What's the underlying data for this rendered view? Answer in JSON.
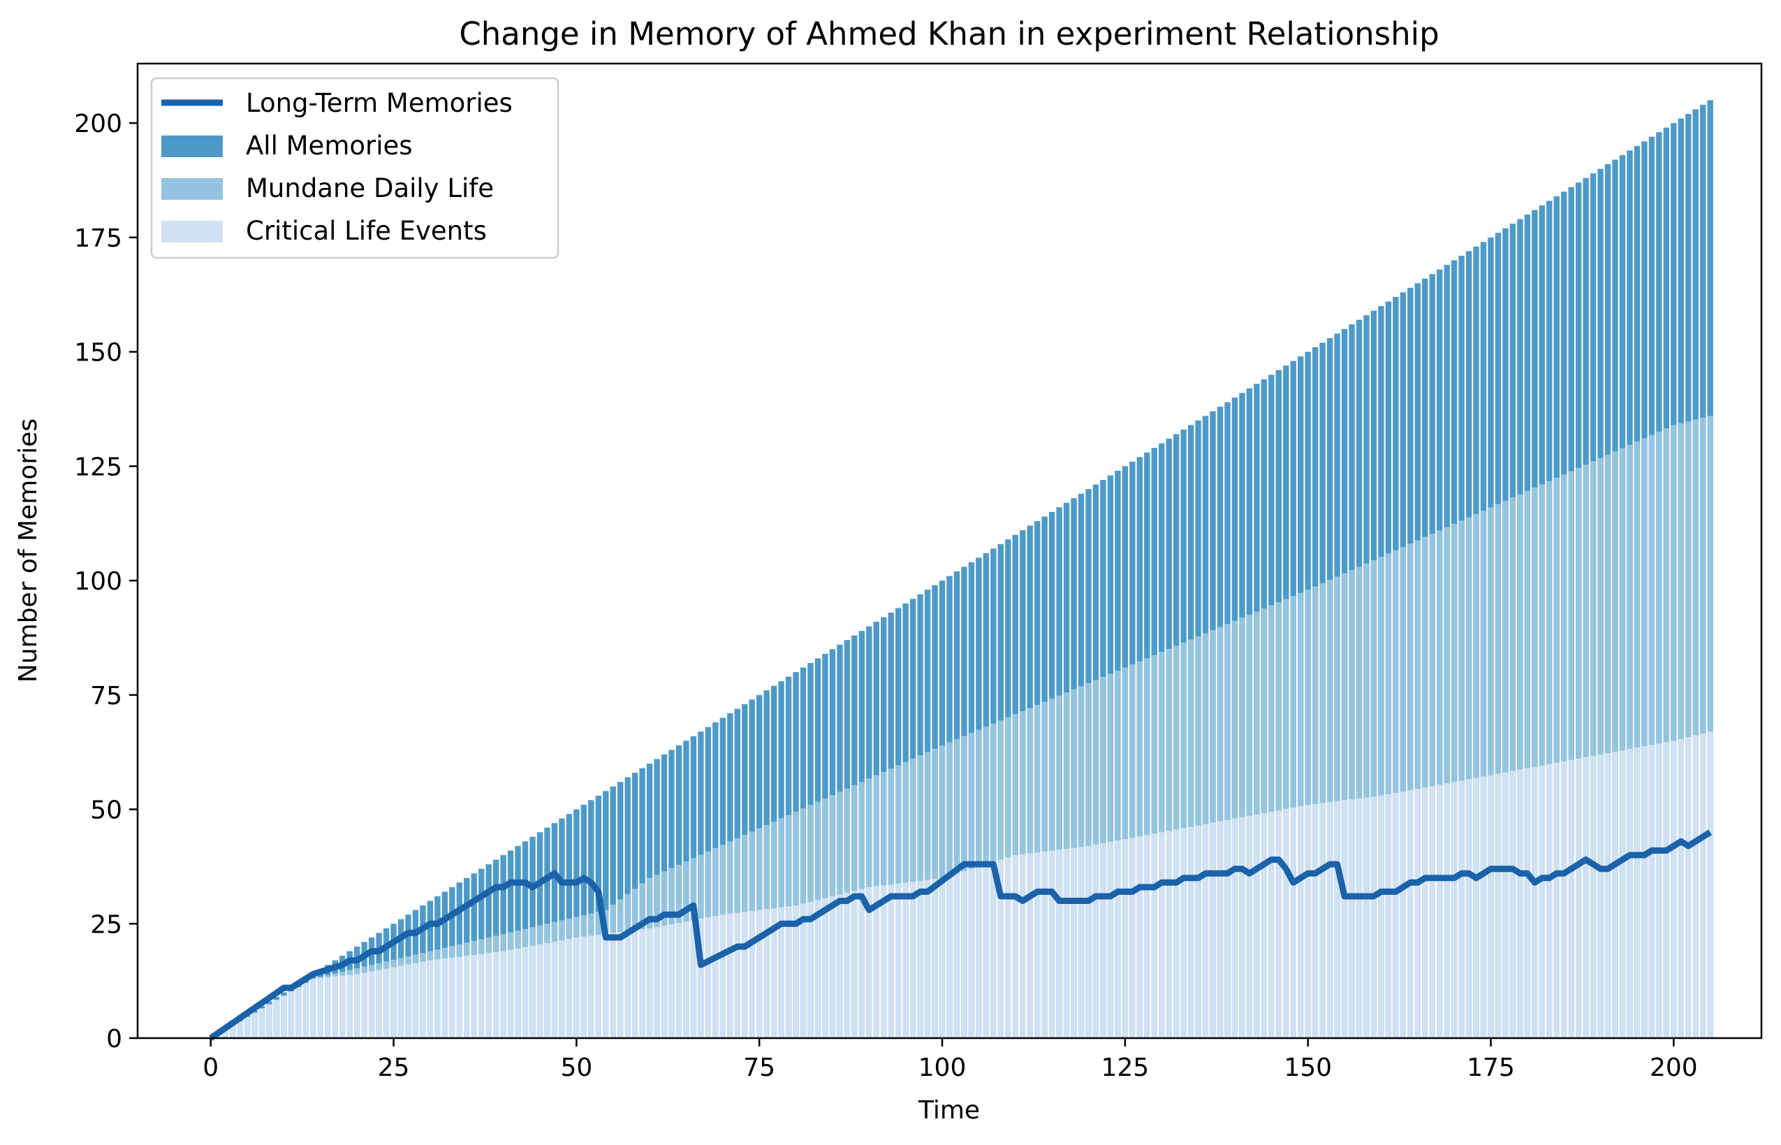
{
  "chart_data": {
    "type": "bar",
    "title": "Change in Memory of Ahmed Khan in experiment Relationship",
    "xlabel": "Time",
    "ylabel": "Number of Memories",
    "xlim": [
      -10,
      212
    ],
    "ylim": [
      0,
      213
    ],
    "xticks": [
      0,
      25,
      50,
      75,
      100,
      125,
      150,
      175,
      200
    ],
    "yticks": [
      0,
      25,
      50,
      75,
      100,
      125,
      150,
      175,
      200
    ],
    "grid": false,
    "legend_position": "top-left",
    "colors": {
      "long_term": "#1a62a9",
      "all": "#4d9ac9",
      "mundane": "#94c4df",
      "critical": "#cfe1f2"
    },
    "series": [
      {
        "name": "Long-Term Memories",
        "kind": "line",
        "points": [
          [
            0,
            0
          ],
          [
            10,
            11
          ],
          [
            11,
            11
          ],
          [
            14,
            14
          ],
          [
            16,
            15
          ],
          [
            18,
            16
          ],
          [
            19,
            17
          ],
          [
            20,
            17
          ],
          [
            22,
            19
          ],
          [
            23,
            19
          ],
          [
            26,
            22
          ],
          [
            27,
            23
          ],
          [
            28,
            23
          ],
          [
            30,
            25
          ],
          [
            31,
            25
          ],
          [
            33,
            27
          ],
          [
            39,
            33
          ],
          [
            40,
            33
          ],
          [
            41,
            34
          ],
          [
            43,
            34
          ],
          [
            44,
            33
          ],
          [
            47,
            36
          ],
          [
            48,
            34
          ],
          [
            50,
            34
          ],
          [
            51,
            35
          ],
          [
            52,
            34
          ],
          [
            53,
            32
          ],
          [
            54,
            22
          ],
          [
            56,
            22
          ],
          [
            60,
            26
          ],
          [
            61,
            26
          ],
          [
            62,
            27
          ],
          [
            64,
            27
          ],
          [
            66,
            29
          ],
          [
            67,
            16
          ],
          [
            72,
            20
          ],
          [
            73,
            20
          ],
          [
            78,
            25
          ],
          [
            80,
            25
          ],
          [
            81,
            26
          ],
          [
            82,
            26
          ],
          [
            86,
            30
          ],
          [
            87,
            30
          ],
          [
            88,
            31
          ],
          [
            89,
            31
          ],
          [
            90,
            28
          ],
          [
            93,
            31
          ],
          [
            96,
            31
          ],
          [
            97,
            32
          ],
          [
            98,
            32
          ],
          [
            103,
            38
          ],
          [
            107,
            38
          ],
          [
            108,
            31
          ],
          [
            110,
            31
          ],
          [
            111,
            30
          ],
          [
            113,
            32
          ],
          [
            115,
            32
          ],
          [
            116,
            30
          ],
          [
            120,
            30
          ],
          [
            121,
            31
          ],
          [
            123,
            31
          ],
          [
            124,
            32
          ],
          [
            126,
            32
          ],
          [
            127,
            33
          ],
          [
            129,
            33
          ],
          [
            130,
            34
          ],
          [
            132,
            34
          ],
          [
            133,
            35
          ],
          [
            135,
            35
          ],
          [
            136,
            36
          ],
          [
            139,
            36
          ],
          [
            140,
            37
          ],
          [
            141,
            37
          ],
          [
            142,
            36
          ],
          [
            145,
            39
          ],
          [
            146,
            39
          ],
          [
            147,
            37
          ],
          [
            148,
            34
          ],
          [
            150,
            36
          ],
          [
            151,
            36
          ],
          [
            153,
            38
          ],
          [
            154,
            38
          ],
          [
            155,
            31
          ],
          [
            159,
            31
          ],
          [
            160,
            32
          ],
          [
            162,
            32
          ],
          [
            164,
            34
          ],
          [
            165,
            34
          ],
          [
            166,
            35
          ],
          [
            170,
            35
          ],
          [
            171,
            36
          ],
          [
            172,
            36
          ],
          [
            173,
            35
          ],
          [
            175,
            37
          ],
          [
            178,
            37
          ],
          [
            179,
            36
          ],
          [
            180,
            36
          ],
          [
            181,
            34
          ],
          [
            182,
            35
          ],
          [
            183,
            35
          ],
          [
            184,
            36
          ],
          [
            185,
            36
          ],
          [
            188,
            39
          ],
          [
            190,
            37
          ],
          [
            191,
            37
          ],
          [
            194,
            40
          ],
          [
            196,
            40
          ],
          [
            197,
            41
          ],
          [
            199,
            41
          ],
          [
            201,
            43
          ],
          [
            202,
            42
          ],
          [
            205,
            45
          ]
        ]
      },
      {
        "name": "All Memories",
        "kind": "bar",
        "equals_time": true
      },
      {
        "name": "Mundane Daily Life",
        "kind": "bar",
        "points": [
          [
            0,
            0
          ],
          [
            14,
            13
          ],
          [
            54,
            28
          ],
          [
            60,
            35
          ],
          [
            100,
            64
          ],
          [
            150,
            98
          ],
          [
            200,
            134
          ],
          [
            205,
            136
          ]
        ]
      },
      {
        "name": "Critical Life Events",
        "kind": "bar",
        "points": [
          [
            0,
            0
          ],
          [
            14,
            13
          ],
          [
            20,
            14
          ],
          [
            30,
            17
          ],
          [
            40,
            19
          ],
          [
            50,
            22
          ],
          [
            60,
            24
          ],
          [
            70,
            27
          ],
          [
            80,
            29
          ],
          [
            90,
            33
          ],
          [
            100,
            35
          ],
          [
            110,
            40
          ],
          [
            120,
            42
          ],
          [
            130,
            45
          ],
          [
            140,
            48
          ],
          [
            150,
            51
          ],
          [
            160,
            53
          ],
          [
            170,
            56
          ],
          [
            180,
            59
          ],
          [
            190,
            62
          ],
          [
            200,
            65
          ],
          [
            205,
            67
          ]
        ]
      }
    ],
    "bar_time_range": [
      0,
      205
    ]
  }
}
